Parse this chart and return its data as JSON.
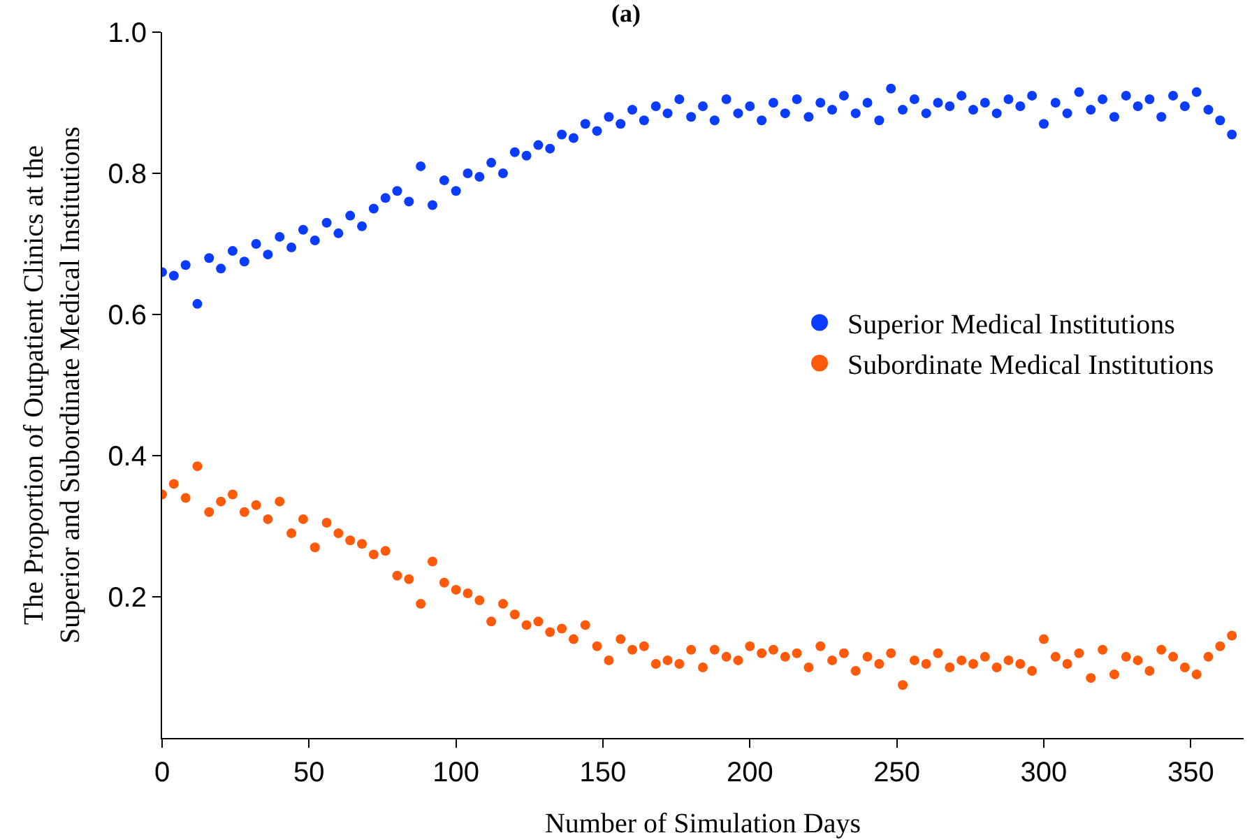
{
  "chart_data": {
    "type": "scatter",
    "title": "(a)",
    "xlabel": "Number of Simulation Days",
    "ylabel": "The Proportion of Outpatient Clinics at the\nSuperior and Subordinate Medical Institutions",
    "x": [
      0,
      4,
      8,
      12,
      16,
      20,
      24,
      28,
      32,
      36,
      40,
      44,
      48,
      52,
      56,
      60,
      64,
      68,
      72,
      76,
      80,
      84,
      88,
      92,
      96,
      100,
      104,
      108,
      112,
      116,
      120,
      124,
      128,
      132,
      136,
      140,
      144,
      148,
      152,
      156,
      160,
      164,
      168,
      172,
      176,
      180,
      184,
      188,
      192,
      196,
      200,
      204,
      208,
      212,
      216,
      220,
      224,
      228,
      232,
      236,
      240,
      244,
      248,
      252,
      256,
      260,
      264,
      268,
      272,
      276,
      280,
      284,
      288,
      292,
      296,
      300,
      304,
      308,
      312,
      316,
      320,
      324,
      328,
      332,
      336,
      340,
      344,
      348,
      352,
      356,
      360,
      364
    ],
    "series": [
      {
        "name": "Superior Medical Institutions",
        "color": "#0a3cff",
        "values": [
          0.66,
          0.655,
          0.67,
          0.615,
          0.68,
          0.665,
          0.69,
          0.675,
          0.7,
          0.685,
          0.71,
          0.695,
          0.72,
          0.705,
          0.73,
          0.715,
          0.74,
          0.725,
          0.75,
          0.765,
          0.775,
          0.76,
          0.81,
          0.755,
          0.79,
          0.775,
          0.8,
          0.795,
          0.815,
          0.8,
          0.83,
          0.825,
          0.84,
          0.835,
          0.855,
          0.85,
          0.87,
          0.86,
          0.88,
          0.87,
          0.89,
          0.875,
          0.895,
          0.885,
          0.905,
          0.88,
          0.895,
          0.875,
          0.905,
          0.885,
          0.895,
          0.875,
          0.9,
          0.885,
          0.905,
          0.88,
          0.9,
          0.89,
          0.91,
          0.885,
          0.9,
          0.875,
          0.92,
          0.89,
          0.905,
          0.885,
          0.9,
          0.895,
          0.91,
          0.89,
          0.9,
          0.885,
          0.905,
          0.895,
          0.91,
          0.87,
          0.9,
          0.885,
          0.915,
          0.89,
          0.905,
          0.88,
          0.91,
          0.895,
          0.905,
          0.88,
          0.91,
          0.895,
          0.915,
          0.89,
          0.875,
          0.855
        ]
      },
      {
        "name": "Subordinate Medical Institutions",
        "color": "#ff5a0a",
        "values": [
          0.345,
          0.36,
          0.34,
          0.385,
          0.32,
          0.335,
          0.345,
          0.32,
          0.33,
          0.31,
          0.335,
          0.29,
          0.31,
          0.27,
          0.305,
          0.29,
          0.28,
          0.275,
          0.26,
          0.265,
          0.23,
          0.225,
          0.19,
          0.25,
          0.22,
          0.21,
          0.205,
          0.195,
          0.165,
          0.19,
          0.175,
          0.16,
          0.165,
          0.15,
          0.155,
          0.14,
          0.16,
          0.13,
          0.11,
          0.14,
          0.125,
          0.13,
          0.105,
          0.11,
          0.105,
          0.125,
          0.1,
          0.125,
          0.115,
          0.11,
          0.13,
          0.12,
          0.125,
          0.115,
          0.12,
          0.1,
          0.13,
          0.11,
          0.12,
          0.095,
          0.115,
          0.105,
          0.12,
          0.075,
          0.11,
          0.105,
          0.12,
          0.1,
          0.11,
          0.105,
          0.115,
          0.1,
          0.11,
          0.105,
          0.095,
          0.14,
          0.115,
          0.105,
          0.12,
          0.085,
          0.125,
          0.09,
          0.115,
          0.11,
          0.095,
          0.125,
          0.115,
          0.1,
          0.09,
          0.115,
          0.13,
          0.145
        ]
      }
    ],
    "xlim": [
      0,
      368
    ],
    "xticks": [
      0,
      50,
      100,
      150,
      200,
      250,
      300,
      350
    ],
    "ylim": [
      0,
      1.0
    ],
    "yticks": [
      0.2,
      0.4,
      0.6,
      0.8,
      {
        "value": 1,
        "label": "1.0"
      }
    ],
    "marker": "circle",
    "legend": "right"
  }
}
